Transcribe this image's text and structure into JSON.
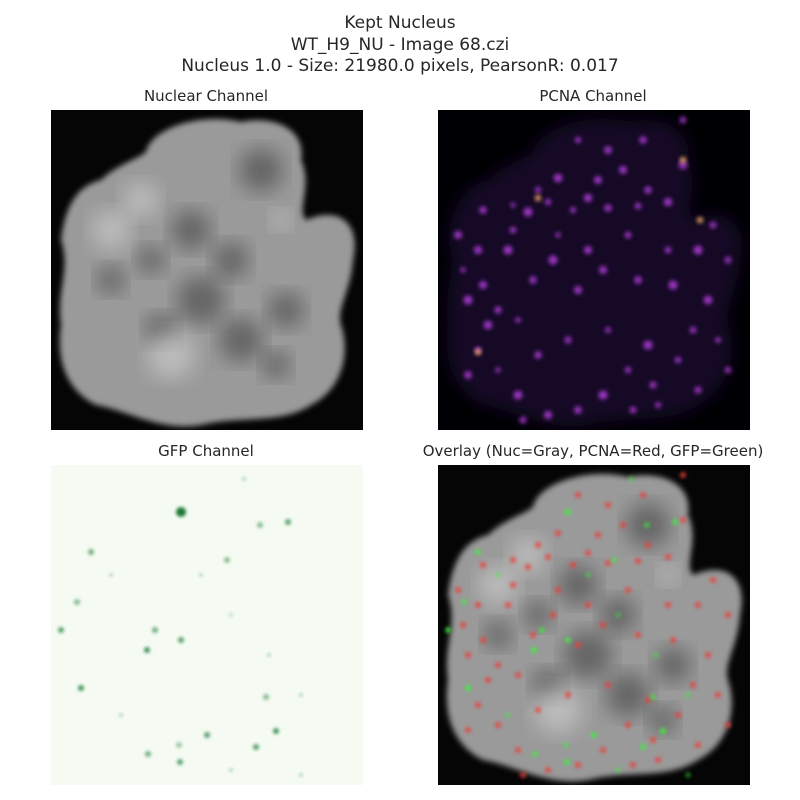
{
  "figure": {
    "title_line1": "Kept Nucleus",
    "title_line2": "WT_H9_NU - Image 68.czi",
    "title_line3": "Nucleus 1.0 - Size: 21980.0 pixels, PearsonR: 0.017"
  },
  "panels": {
    "nuclear": {
      "title": "Nuclear Channel",
      "colormap": "gray"
    },
    "pcna": {
      "title": "PCNA Channel",
      "colormap": "magma"
    },
    "gfp": {
      "title": "GFP Channel",
      "colormap": "Greens"
    },
    "overlay": {
      "title": "Overlay (Nuc=Gray, PCNA=Red, GFP=Green)"
    }
  },
  "colors": {
    "background_dark": "#050505",
    "nucleus_gray": "#9a9a9a",
    "pcna_background": "#0a0614",
    "pcna_spot": "#b03cd8",
    "pcna_bright": "#fdb56b",
    "gfp_background": "#f2faef",
    "gfp_spot": "#1f7a38",
    "overlay_red": "#e8403a",
    "overlay_green": "#3cf03c"
  }
}
